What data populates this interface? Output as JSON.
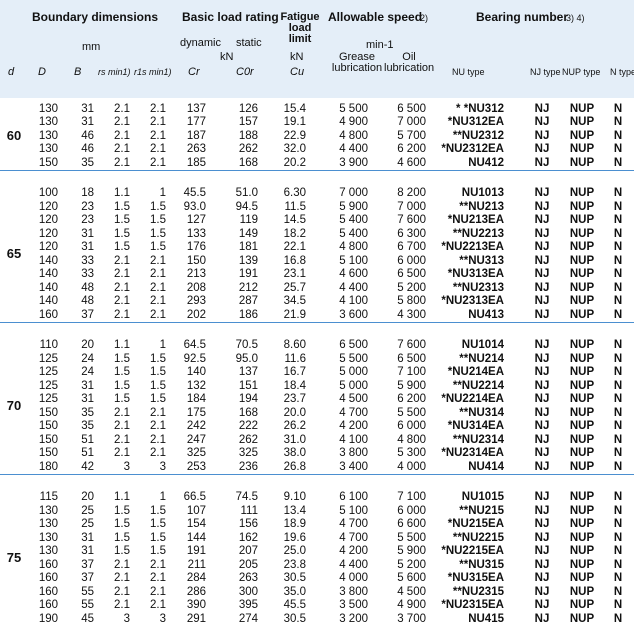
{
  "header": {
    "boundary": "Boundary dimensions",
    "mm": "mm",
    "load": "Basic load rating",
    "dynamic": "dynamic",
    "static": "static",
    "load_unit": "kN",
    "fatigue": "Fatigue load limit",
    "fatigue_unit": "kN",
    "speed": "Allowable speed",
    "speed_note": "2)",
    "speed_unit": "min-1",
    "grease": "Grease lubrication",
    "oil": "Oil lubrication",
    "bearing": "Bearing number",
    "bearing_note": "3) 4)",
    "columns": [
      "d",
      "D",
      "B",
      "rs min1)",
      "r1s min1)",
      "Cr",
      "C0r",
      "Cu",
      "",
      "",
      "NU type",
      "NJ type",
      "NUP type",
      "N type"
    ]
  },
  "groups": [
    {
      "d": "60",
      "rows": [
        [
          "130",
          "31",
          "2.1",
          "2.1",
          "137",
          "126",
          "15.4",
          "5 500",
          "6 500",
          "* *NU312",
          "NJ",
          "NUP",
          "N"
        ],
        [
          "130",
          "31",
          "2.1",
          "2.1",
          "177",
          "157",
          "19.1",
          "4 900",
          "7 000",
          "*NU312EA",
          "NJ",
          "NUP",
          "N"
        ],
        [
          "130",
          "46",
          "2.1",
          "2.1",
          "187",
          "188",
          "22.9",
          "4 800",
          "5 700",
          "**NU2312",
          "NJ",
          "NUP",
          "N"
        ],
        [
          "130",
          "46",
          "2.1",
          "2.1",
          "263",
          "262",
          "32.0",
          "4 400",
          "6 200",
          "*NU2312EA",
          "NJ",
          "NUP",
          "N"
        ],
        [
          "150",
          "35",
          "2.1",
          "2.1",
          "185",
          "168",
          "20.2",
          "3 900",
          "4 600",
          "NU412",
          "NJ",
          "NUP",
          "N"
        ]
      ]
    },
    {
      "d": "65",
      "rows": [
        [
          "100",
          "18",
          "1.1",
          "1",
          "45.5",
          "51.0",
          "6.30",
          "7 000",
          "8 200",
          "NU1013",
          "NJ",
          "NUP",
          "N"
        ],
        [
          "120",
          "23",
          "1.5",
          "1.5",
          "93.0",
          "94.5",
          "11.5",
          "5 900",
          "7 000",
          "**NU213",
          "NJ",
          "NUP",
          "N"
        ],
        [
          "120",
          "23",
          "1.5",
          "1.5",
          "127",
          "119",
          "14.5",
          "5 400",
          "7 600",
          "*NU213EA",
          "NJ",
          "NUP",
          "N"
        ],
        [
          "120",
          "31",
          "1.5",
          "1.5",
          "133",
          "149",
          "18.2",
          "5 400",
          "6 300",
          "**NU2213",
          "NJ",
          "NUP",
          "N"
        ],
        [
          "120",
          "31",
          "1.5",
          "1.5",
          "176",
          "181",
          "22.1",
          "4 800",
          "6 700",
          "*NU2213EA",
          "NJ",
          "NUP",
          "N"
        ],
        [
          "140",
          "33",
          "2.1",
          "2.1",
          "150",
          "139",
          "16.8",
          "5 100",
          "6 000",
          "**NU313",
          "NJ",
          "NUP",
          "N"
        ],
        [
          "140",
          "33",
          "2.1",
          "2.1",
          "213",
          "191",
          "23.1",
          "4 600",
          "6 500",
          "*NU313EA",
          "NJ",
          "NUP",
          "N"
        ],
        [
          "140",
          "48",
          "2.1",
          "2.1",
          "208",
          "212",
          "25.7",
          "4 400",
          "5 200",
          "**NU2313",
          "NJ",
          "NUP",
          "N"
        ],
        [
          "140",
          "48",
          "2.1",
          "2.1",
          "293",
          "287",
          "34.5",
          "4 100",
          "5 800",
          "*NU2313EA",
          "NJ",
          "NUP",
          "N"
        ],
        [
          "160",
          "37",
          "2.1",
          "2.1",
          "202",
          "186",
          "21.9",
          "3 600",
          "4 300",
          "NU413",
          "NJ",
          "NUP",
          "N"
        ]
      ]
    },
    {
      "d": "70",
      "rows": [
        [
          "110",
          "20",
          "1.1",
          "1",
          "64.5",
          "70.5",
          "8.60",
          "6 500",
          "7 600",
          "NU1014",
          "NJ",
          "NUP",
          "N"
        ],
        [
          "125",
          "24",
          "1.5",
          "1.5",
          "92.5",
          "95.0",
          "11.6",
          "5 500",
          "6 500",
          "**NU214",
          "NJ",
          "NUP",
          "N"
        ],
        [
          "125",
          "24",
          "1.5",
          "1.5",
          "140",
          "137",
          "16.7",
          "5 000",
          "7 100",
          "*NU214EA",
          "NJ",
          "NUP",
          "N"
        ],
        [
          "125",
          "31",
          "1.5",
          "1.5",
          "132",
          "151",
          "18.4",
          "5 000",
          "5 900",
          "**NU2214",
          "NJ",
          "NUP",
          "N"
        ],
        [
          "125",
          "31",
          "1.5",
          "1.5",
          "184",
          "194",
          "23.7",
          "4 500",
          "6 200",
          "*NU2214EA",
          "NJ",
          "NUP",
          "N"
        ],
        [
          "150",
          "35",
          "2.1",
          "2.1",
          "175",
          "168",
          "20.0",
          "4 700",
          "5 500",
          "**NU314",
          "NJ",
          "NUP",
          "N"
        ],
        [
          "150",
          "35",
          "2.1",
          "2.1",
          "242",
          "222",
          "26.2",
          "4 200",
          "6 000",
          "*NU314EA",
          "NJ",
          "NUP",
          "N"
        ],
        [
          "150",
          "51",
          "2.1",
          "2.1",
          "247",
          "262",
          "31.0",
          "4 100",
          "4 800",
          "**NU2314",
          "NJ",
          "NUP",
          "N"
        ],
        [
          "150",
          "51",
          "2.1",
          "2.1",
          "325",
          "325",
          "38.0",
          "3 800",
          "5 300",
          "*NU2314EA",
          "NJ",
          "NUP",
          "N"
        ],
        [
          "180",
          "42",
          "3",
          "3",
          "253",
          "236",
          "26.8",
          "3 400",
          "4 000",
          "NU414",
          "NJ",
          "NUP",
          "N"
        ]
      ]
    },
    {
      "d": "75",
      "rows": [
        [
          "115",
          "20",
          "1.1",
          "1",
          "66.5",
          "74.5",
          "9.10",
          "6 100",
          "7 100",
          "NU1015",
          "NJ",
          "NUP",
          "N"
        ],
        [
          "130",
          "25",
          "1.5",
          "1.5",
          "107",
          "111",
          "13.4",
          "5 100",
          "6 000",
          "**NU215",
          "NJ",
          "NUP",
          "N"
        ],
        [
          "130",
          "25",
          "1.5",
          "1.5",
          "154",
          "156",
          "18.9",
          "4 700",
          "6 600",
          "*NU215EA",
          "NJ",
          "NUP",
          "N"
        ],
        [
          "130",
          "31",
          "1.5",
          "1.5",
          "144",
          "162",
          "19.6",
          "4 700",
          "5 500",
          "**NU2215",
          "NJ",
          "NUP",
          "N"
        ],
        [
          "130",
          "31",
          "1.5",
          "1.5",
          "191",
          "207",
          "25.0",
          "4 200",
          "5 900",
          "*NU2215EA",
          "NJ",
          "NUP",
          "N"
        ],
        [
          "160",
          "37",
          "2.1",
          "2.1",
          "211",
          "205",
          "23.8",
          "4 400",
          "5 200",
          "**NU315",
          "NJ",
          "NUP",
          "N"
        ],
        [
          "160",
          "37",
          "2.1",
          "2.1",
          "284",
          "263",
          "30.5",
          "4 000",
          "5 600",
          "*NU315EA",
          "NJ",
          "NUP",
          "N"
        ],
        [
          "160",
          "55",
          "2.1",
          "2.1",
          "286",
          "300",
          "35.0",
          "3 800",
          "4 500",
          "**NU2315",
          "NJ",
          "NUP",
          "N"
        ],
        [
          "160",
          "55",
          "2.1",
          "2.1",
          "390",
          "395",
          "45.5",
          "3 500",
          "4 900",
          "*NU2315EA",
          "NJ",
          "NUP",
          "N"
        ],
        [
          "190",
          "45",
          "3",
          "3",
          "291",
          "274",
          "30.5",
          "3 200",
          "3 700",
          "NU415",
          "NJ",
          "NUP",
          "N"
        ]
      ]
    }
  ]
}
